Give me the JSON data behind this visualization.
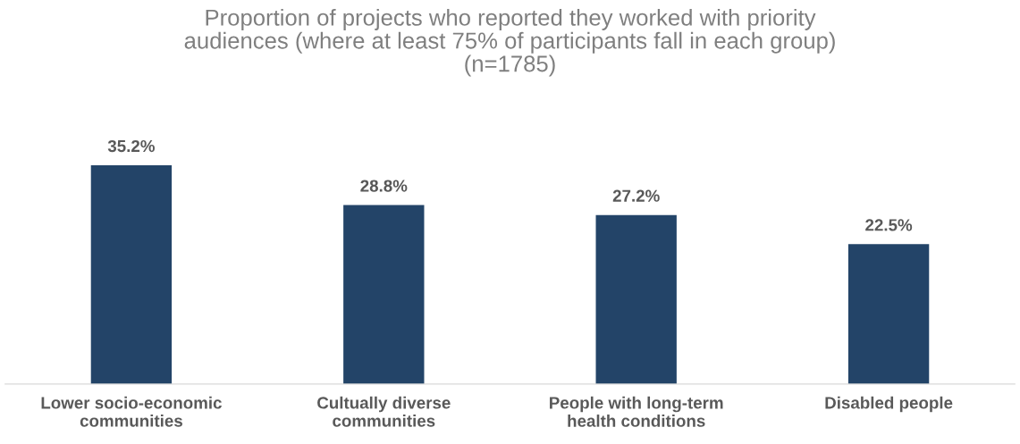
{
  "chart_data": {
    "type": "bar",
    "title": "Proportion of projects who reported they worked with priority\naudiences (where at least 75% of participants fall in each group)\n(n=1785)",
    "categories": [
      "Lower socio-economic\ncommunities",
      "Cultually diverse\ncommunities",
      "People with long-term\nhealth conditions",
      "Disabled people"
    ],
    "values": [
      35.2,
      28.8,
      27.2,
      22.5
    ],
    "value_labels": [
      "35.2%",
      "28.8%",
      "27.2%",
      "22.5%"
    ],
    "color": "#234468",
    "grid": false,
    "legend": false
  }
}
